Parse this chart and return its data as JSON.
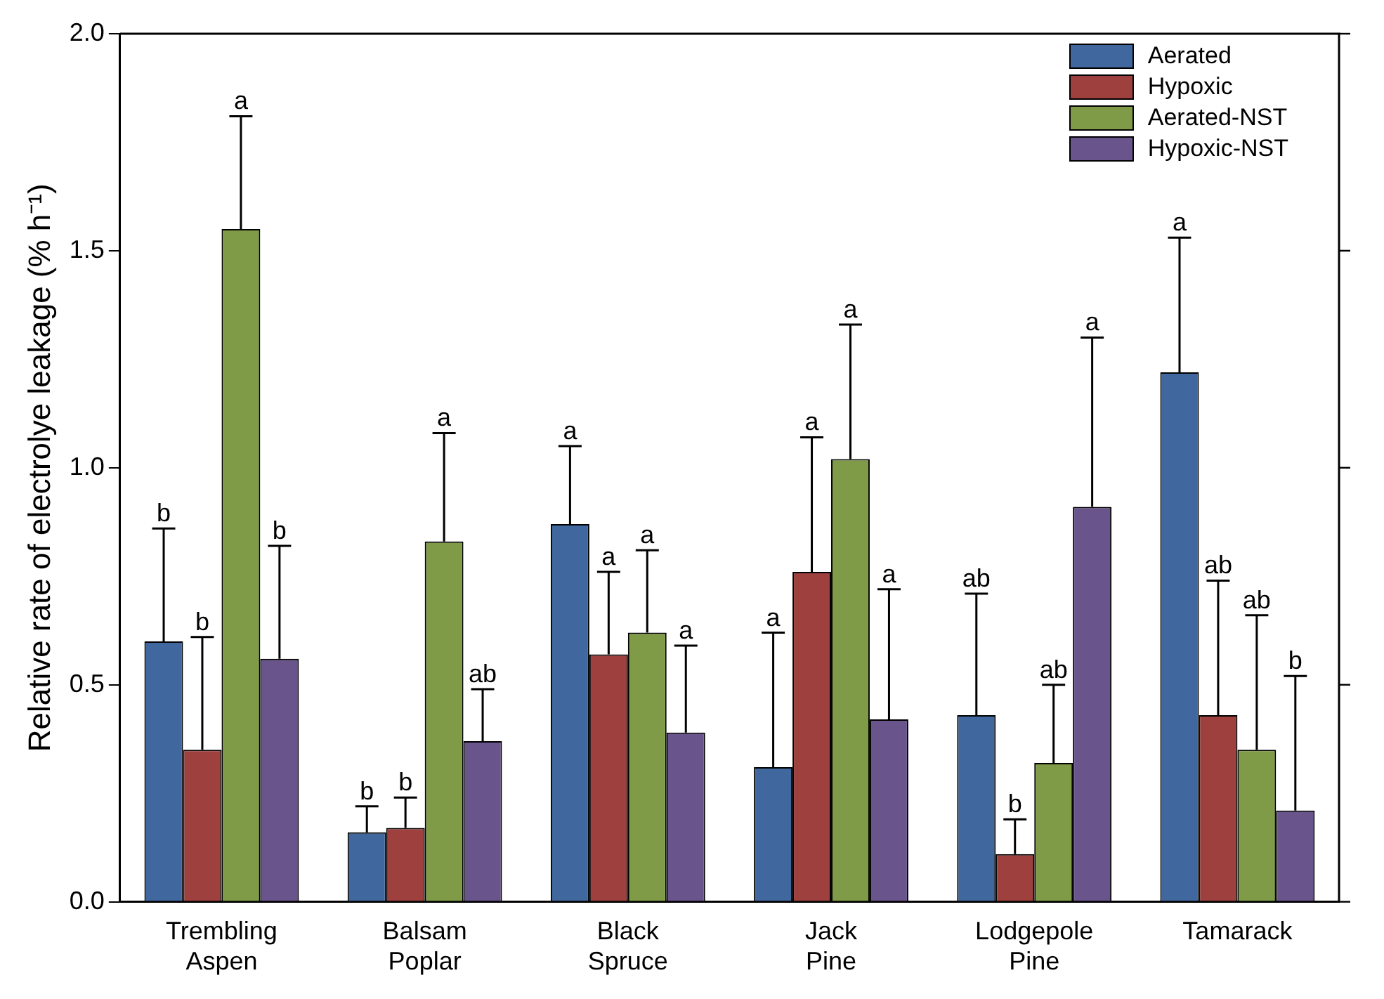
{
  "chart_data": {
    "type": "bar",
    "ylabel": "Relative rate of electrolye leakage (% h⁻¹)",
    "categories": [
      "Trembling Aspen",
      "Balsam Poplar",
      "Black Spruce",
      "Jack Pine",
      "Lodgepole Pine",
      "Tamarack"
    ],
    "series": [
      {
        "name": "Aerated",
        "color": "#41689e",
        "values": [
          0.6,
          0.16,
          0.87,
          0.31,
          0.43,
          1.22
        ],
        "errors": [
          [
            0.6,
            0.86
          ],
          [
            0.16,
            0.22
          ],
          [
            0.87,
            1.05
          ],
          [
            0.31,
            0.62
          ],
          [
            0.43,
            0.71
          ],
          [
            1.22,
            1.53
          ]
        ]
      },
      {
        "name": "Hypoxic",
        "color": "#9e413e",
        "values": [
          0.35,
          0.17,
          0.57,
          0.76,
          0.11,
          0.43
        ],
        "errors": [
          [
            0.35,
            0.61
          ],
          [
            0.17,
            0.24
          ],
          [
            0.57,
            0.76
          ],
          [
            0.76,
            1.07
          ],
          [
            0.11,
            0.19
          ],
          [
            0.43,
            0.74
          ]
        ]
      },
      {
        "name": "Aerated-NST",
        "color": "#7f9b48",
        "values": [
          1.55,
          0.83,
          0.62,
          1.02,
          0.32,
          0.35
        ],
        "errors": [
          [
            1.55,
            1.81
          ],
          [
            0.83,
            1.08
          ],
          [
            0.62,
            0.81
          ],
          [
            1.02,
            1.33
          ],
          [
            0.32,
            0.5
          ],
          [
            0.35,
            0.66
          ]
        ]
      },
      {
        "name": "Hypoxic-NST",
        "color": "#69548c",
        "values": [
          0.56,
          0.37,
          0.39,
          0.42,
          0.91,
          0.21
        ],
        "errors": [
          [
            0.56,
            0.82
          ],
          [
            0.37,
            0.49
          ],
          [
            0.39,
            0.59
          ],
          [
            0.42,
            0.72
          ],
          [
            0.91,
            1.3
          ],
          [
            0.21,
            0.52
          ]
        ]
      }
    ],
    "ylim": [
      0,
      2.0
    ],
    "yticks": [
      {
        "value": 0,
        "label": "0.0"
      },
      {
        "value": 0.5,
        "label": "0.5"
      },
      {
        "value": 1.0,
        "label": "1.0"
      },
      {
        "value": 1.5,
        "label": "1.5"
      },
      {
        "value": 2.0,
        "label": "2.0"
      }
    ],
    "grid": false,
    "legend": "top right",
    "annotations": [
      "b",
      "b",
      "a",
      "b",
      "b",
      "b",
      "a",
      "ab",
      "a",
      "a",
      "a",
      "a",
      "a",
      "a",
      "a",
      "a",
      "ab",
      "b",
      "ab",
      "a",
      "a",
      "ab",
      "ab",
      "b"
    ]
  }
}
